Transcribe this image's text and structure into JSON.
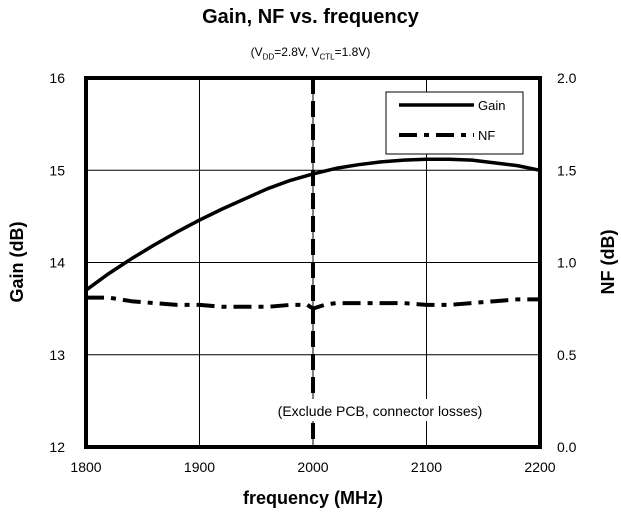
{
  "chart_data": {
    "type": "line",
    "title": "Gain, NF vs. frequency",
    "subtitle": {
      "prefix": "(V",
      "vdd_sub": "DD",
      "mid": "=2.8V, V",
      "vctl_sub": "CTL",
      "suffix": "=1.8V)"
    },
    "xlabel": "frequency (MHz)",
    "ylabel_left": "Gain (dB)",
    "ylabel_right": "NF (dB)",
    "xlim": [
      1800,
      2200
    ],
    "ylim_left": [
      12,
      16
    ],
    "ylim_right": [
      0.0,
      2.0
    ],
    "x_ticks": [
      "1800",
      "1900",
      "2000",
      "2100",
      "2200"
    ],
    "y_left_ticks": [
      "12",
      "13",
      "14",
      "15",
      "16"
    ],
    "y_right_ticks": [
      "0.0",
      "0.5",
      "1.0",
      "1.5",
      "2.0"
    ],
    "grid": true,
    "legend_position": "top-right",
    "annotation": "(Exclude PCB, connector losses)",
    "marker_line_x": 2000,
    "series": [
      {
        "name": "Gain",
        "axis": "left",
        "style": "solid",
        "x": [
          1800,
          1820,
          1840,
          1860,
          1880,
          1900,
          1920,
          1940,
          1960,
          1980,
          2000,
          2020,
          2040,
          2060,
          2080,
          2100,
          2120,
          2140,
          2160,
          2180,
          2200
        ],
        "y": [
          13.7,
          13.88,
          14.04,
          14.19,
          14.33,
          14.46,
          14.58,
          14.69,
          14.8,
          14.89,
          14.96,
          15.02,
          15.06,
          15.09,
          15.11,
          15.12,
          15.12,
          15.11,
          15.08,
          15.05,
          15.0
        ]
      },
      {
        "name": "NF",
        "axis": "right",
        "style": "dash-dot",
        "x": [
          1800,
          1820,
          1840,
          1860,
          1880,
          1900,
          1920,
          1940,
          1960,
          1980,
          1995,
          2000,
          2010,
          2020,
          2040,
          2060,
          2080,
          2100,
          2120,
          2140,
          2160,
          2180,
          2200
        ],
        "y": [
          0.81,
          0.81,
          0.79,
          0.78,
          0.77,
          0.77,
          0.76,
          0.76,
          0.76,
          0.77,
          0.77,
          0.75,
          0.77,
          0.78,
          0.78,
          0.78,
          0.78,
          0.77,
          0.77,
          0.78,
          0.79,
          0.8,
          0.8
        ]
      }
    ]
  }
}
